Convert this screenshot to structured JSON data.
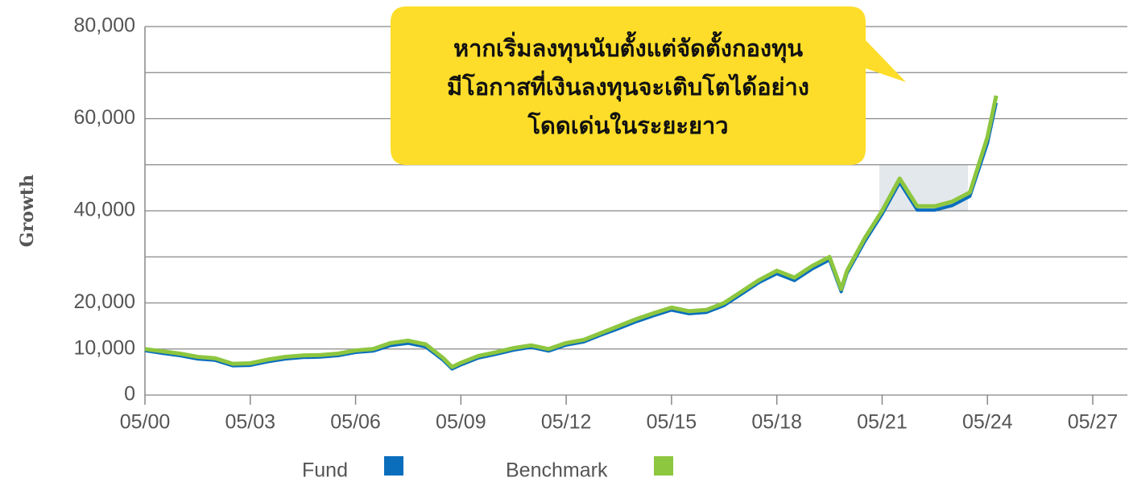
{
  "chart_data": {
    "type": "line",
    "y_label": "Growth",
    "annotation": [
      "หากเริ่มลงทุนนับตั้งแต่จัดตั้งกองทุน",
      "มีโอกาสที่เงินลงทุนจะเติบโตได้อย่าง",
      "โดดเด่นในระยะยาว"
    ],
    "x": [
      "05/00",
      "11/00",
      "05/01",
      "11/01",
      "05/02",
      "11/02",
      "05/03",
      "11/03",
      "05/04",
      "11/04",
      "05/05",
      "11/05",
      "05/06",
      "11/06",
      "05/07",
      "11/07",
      "05/08",
      "11/08",
      "02/09",
      "05/09",
      "11/09",
      "05/10",
      "11/10",
      "05/11",
      "11/11",
      "05/12",
      "11/12",
      "05/13",
      "11/13",
      "05/14",
      "11/14",
      "05/15",
      "11/15",
      "05/16",
      "11/16",
      "05/17",
      "11/17",
      "05/18",
      "11/18",
      "05/19",
      "11/19",
      "03/20",
      "05/20",
      "11/20",
      "05/21",
      "11/21",
      "05/22",
      "11/22",
      "05/23",
      "11/23",
      "05/24",
      "08/24"
    ],
    "series": [
      {
        "name": "Fund",
        "color": "#0a6ebd",
        "values": [
          10000,
          9400,
          8900,
          8200,
          7900,
          6700,
          6800,
          7600,
          8200,
          8500,
          8600,
          8900,
          9600,
          9900,
          11100,
          11600,
          10800,
          7900,
          6000,
          6900,
          8400,
          9200,
          10100,
          10700,
          9900,
          11200,
          11900,
          13400,
          14800,
          16300,
          17600,
          18800,
          18000,
          18300,
          19800,
          22300,
          24800,
          26700,
          25200,
          27700,
          29700,
          22800,
          26800,
          33600,
          39600,
          46500,
          40500,
          40500,
          41500,
          43500,
          55000,
          63800
        ]
      },
      {
        "name": "Benchmark",
        "color": "#8dc63f",
        "values": [
          10000,
          9500,
          9000,
          8300,
          8000,
          6800,
          6900,
          7700,
          8300,
          8600,
          8700,
          9000,
          9700,
          10000,
          11300,
          11800,
          11000,
          8000,
          6100,
          7000,
          8500,
          9300,
          10200,
          10800,
          10000,
          11300,
          12000,
          13500,
          15000,
          16500,
          17800,
          19000,
          18200,
          18500,
          20000,
          22500,
          25000,
          27000,
          25500,
          28000,
          30000,
          23000,
          27000,
          34000,
          40000,
          47000,
          41000,
          41000,
          42000,
          44000,
          56000,
          65000
        ]
      }
    ],
    "xlim": [
      "05/00",
      "05/27"
    ],
    "xticks": [
      "05/00",
      "05/03",
      "05/06",
      "05/09",
      "05/12",
      "05/15",
      "05/18",
      "05/21",
      "05/24",
      "05/27"
    ],
    "ylim": [
      0,
      80000
    ],
    "yticks": [
      0,
      {
        "value": 10000,
        "label": "10,000"
      },
      {
        "value": 20000,
        "label": "20,000"
      },
      {
        "value": 40000,
        "label": "40,000"
      },
      {
        "value": 60000,
        "label": "60,000"
      },
      {
        "value": 80000,
        "label": "80,000"
      }
    ],
    "ygrid": [
      0,
      10000,
      20000,
      30000,
      40000,
      50000,
      60000,
      70000,
      80000
    ]
  }
}
